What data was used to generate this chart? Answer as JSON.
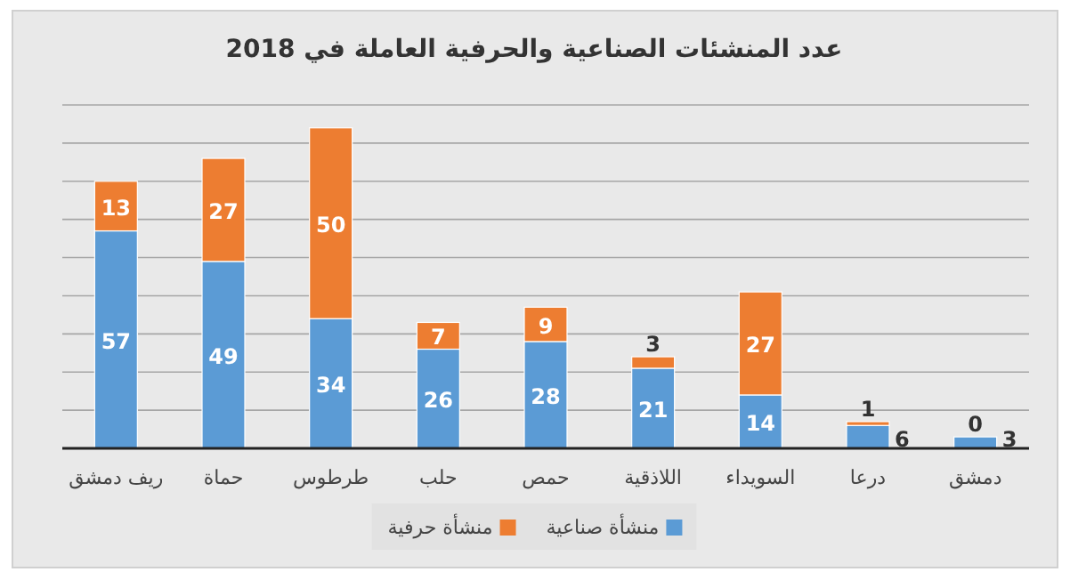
{
  "chart_data": {
    "type": "bar",
    "stacked": true,
    "title": "عدد المنشئات الصناعية والحرفية العاملة في 2018",
    "categories": [
      "ريف دمشق",
      "حماة",
      "طرطوس",
      "حلب",
      "حمص",
      "اللاذقية",
      "السويداء",
      "درعا",
      "دمشق"
    ],
    "series": [
      {
        "name": "منشأة صناعية",
        "color": "#5b9bd5",
        "values": [
          57,
          49,
          34,
          26,
          28,
          21,
          14,
          6,
          3
        ]
      },
      {
        "name": "منشأة حرفية",
        "color": "#ed7d31",
        "values": [
          13,
          27,
          50,
          7,
          9,
          3,
          27,
          1,
          0
        ]
      }
    ],
    "ylim": [
      0,
      90
    ],
    "yticks": [
      {
        "value": 0,
        "label": null
      },
      {
        "value": 10,
        "label": null
      },
      {
        "value": 20,
        "label": null
      },
      {
        "value": 30,
        "label": null
      },
      {
        "value": 40,
        "label": null
      },
      {
        "value": 50,
        "label": null
      },
      {
        "value": 60,
        "label": null
      },
      {
        "value": 70,
        "label": null
      },
      {
        "value": 80,
        "label": null
      },
      {
        "value": 90,
        "label": null
      }
    ],
    "grid": "y",
    "tick_labels": "x",
    "data_labels": true,
    "legend": "bottom"
  }
}
